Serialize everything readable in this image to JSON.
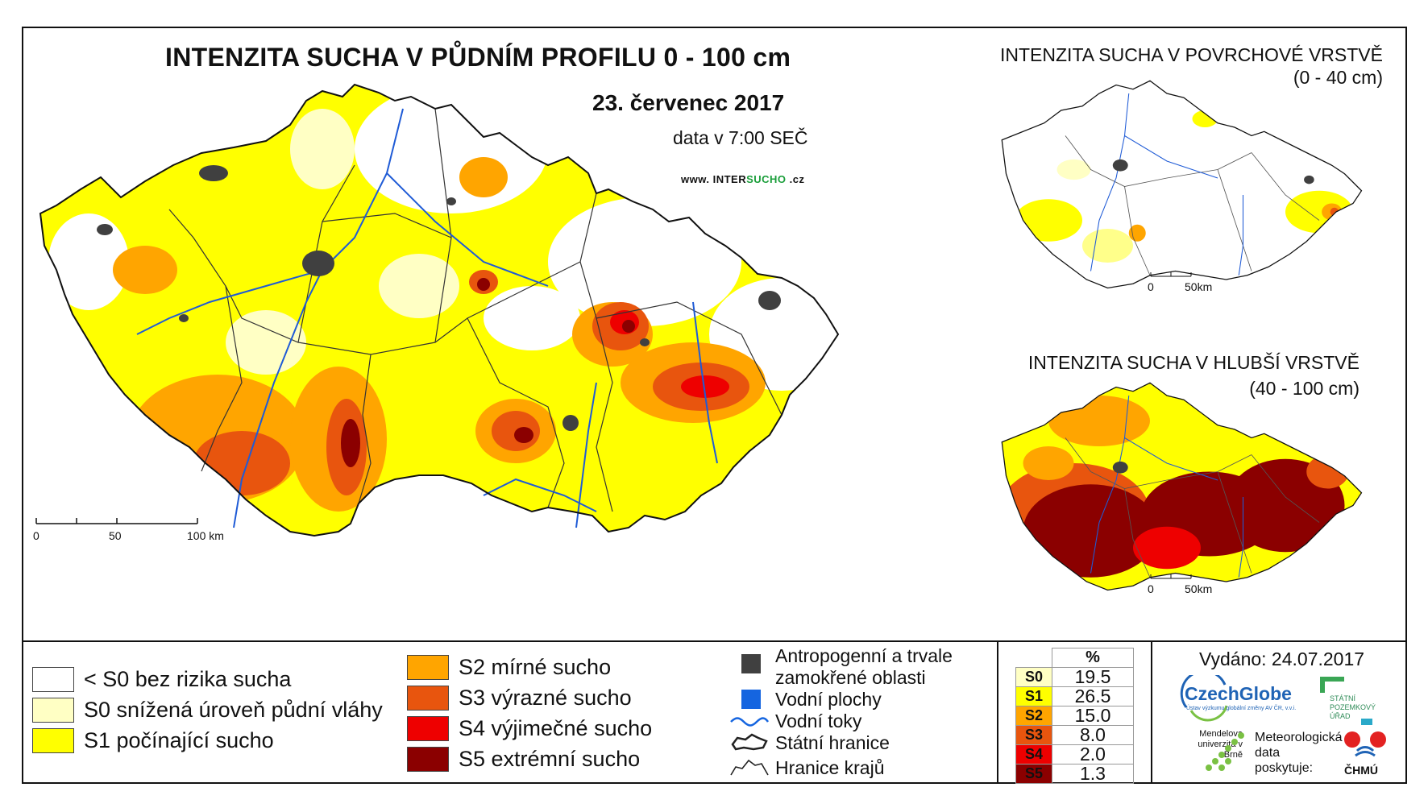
{
  "header": {
    "title": "INTENZITA SUCHA V PŮDNÍM PROFILU 0 - 100 cm",
    "date": "23. červenec 2017",
    "data_time": "data v 7:00 SEČ",
    "web_prefix": "www. INTER",
    "web_highlight": "SUCHO",
    "web_suffix": " .cz"
  },
  "main_map": {
    "scale_labels": [
      "0",
      "50",
      "100 km"
    ]
  },
  "surface_map": {
    "title_line1": "INTENZITA SUCHA V POVRCHOVÉ VRSTVĚ",
    "title_line2": "(0 - 40 cm)",
    "scale_labels": [
      "0",
      "50km"
    ]
  },
  "deep_map": {
    "title_line1": "INTENZITA SUCHA V HLUBŠÍ VRSTVĚ",
    "title_line2": "(40 - 100 cm)",
    "scale_labels": [
      "0",
      "50km"
    ]
  },
  "legend": {
    "classes": [
      {
        "label": "< S0 bez rizika sucha",
        "color": "#ffffff"
      },
      {
        "label": "S0 snížená úroveň půdní vláhy",
        "color": "#ffffc4"
      },
      {
        "label": "S1 počínající sucho",
        "color": "#ffff00"
      },
      {
        "label": "S2 mírné sucho",
        "color": "#ffa500"
      },
      {
        "label": "S3 výrazné sucho",
        "color": "#e8550e"
      },
      {
        "label": "S4 výjimečné sucho",
        "color": "#ee0000"
      },
      {
        "label": "S5 extrémní sucho",
        "color": "#8b0000"
      }
    ],
    "symbols": {
      "anthropogenic_line1": "Antropogenní a trvale",
      "anthropogenic_line2": "zamokřené oblasti",
      "water_bodies": "Vodní plochy",
      "rivers": "Vodní toky",
      "state_border": "Státní hranice",
      "region_border": "Hranice krajů"
    }
  },
  "percent_table": {
    "header": "%",
    "rows": [
      {
        "code": "S0",
        "value": "19.5",
        "color": "#ffffc4"
      },
      {
        "code": "S1",
        "value": "26.5",
        "color": "#ffff00"
      },
      {
        "code": "S2",
        "value": "15.0",
        "color": "#ffa500"
      },
      {
        "code": "S3",
        "value": "8.0",
        "color": "#e8550e"
      },
      {
        "code": "S4",
        "value": "2.0",
        "color": "#ee0000"
      },
      {
        "code": "S5",
        "value": "1.3",
        "color": "#8b0000"
      }
    ]
  },
  "footer": {
    "issued": "Vydáno: 24.07.2017",
    "logo_czechglobe": "CzechGlobe",
    "logo_czechglobe_sub": "Ústav výzkumu globální změny AV ČR, v.v.i.",
    "logo_spu": "STÁTNÍ POZEMKOVÝ ÚŘAD",
    "logo_mendel": "Mendelova univerzita v Brně",
    "meteo_line1": "Meteorologická",
    "meteo_line2": "data",
    "meteo_line3": "poskytuje:",
    "logo_chmu": "ČHMÚ"
  }
}
